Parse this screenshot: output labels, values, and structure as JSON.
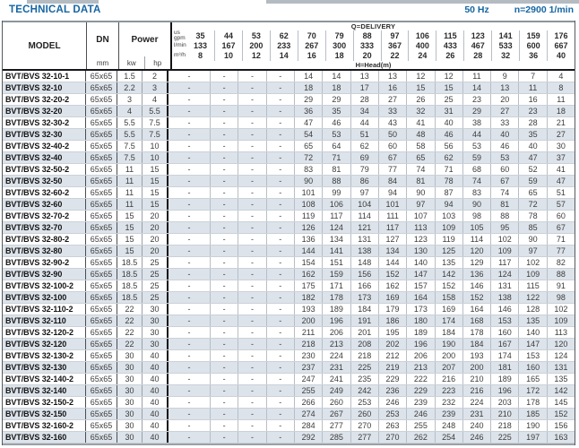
{
  "page": {
    "title": "TECHNICAL DATA",
    "frequency": "50 Hz",
    "speed": "n=2900 1/min",
    "colors": {
      "accent_blue": "#1565a3",
      "row_stripe": "#dce3ea",
      "border_dark": "#17171b"
    }
  },
  "table": {
    "header": {
      "model_label": "MODEL",
      "dn_label": "DN",
      "dn_unit": "mm",
      "power_label": "Power",
      "kw_label": "kw",
      "hp_label": "hp",
      "delivery_label": "Q=DELIVERY",
      "head_label": "H=Head(m)",
      "units": {
        "gpm_top": "us",
        "gpm_bottom": "gpm",
        "lmin": "l/min",
        "m3h": "m³/h"
      },
      "gpm": [
        "35",
        "44",
        "53",
        "62",
        "70",
        "79",
        "88",
        "97",
        "106",
        "115",
        "123",
        "141",
        "159",
        "176"
      ],
      "lmin": [
        "133",
        "167",
        "200",
        "233",
        "267",
        "300",
        "333",
        "367",
        "400",
        "433",
        "467",
        "533",
        "600",
        "667"
      ],
      "m3h": [
        "8",
        "10",
        "12",
        "14",
        "16",
        "18",
        "20",
        "22",
        "24",
        "26",
        "28",
        "32",
        "36",
        "40"
      ]
    },
    "rows": [
      {
        "model": "BVT/BVS 32-10-1",
        "dn": "65x65",
        "kw": "1.5",
        "hp": "2",
        "head": [
          "-",
          "-",
          "-",
          "-",
          "14",
          "14",
          "13",
          "13",
          "12",
          "12",
          "11",
          "9",
          "7",
          "4"
        ]
      },
      {
        "model": "BVT/BVS 32-10",
        "dn": "65x65",
        "kw": "2.2",
        "hp": "3",
        "head": [
          "-",
          "-",
          "-",
          "-",
          "18",
          "18",
          "17",
          "16",
          "15",
          "15",
          "14",
          "13",
          "11",
          "8"
        ]
      },
      {
        "model": "BVT/BVS 32-20-2",
        "dn": "65x65",
        "kw": "3",
        "hp": "4",
        "head": [
          "-",
          "-",
          "-",
          "-",
          "29",
          "29",
          "28",
          "27",
          "26",
          "25",
          "23",
          "20",
          "16",
          "11"
        ]
      },
      {
        "model": "BVT/BVS 32-20",
        "dn": "65x65",
        "kw": "4",
        "hp": "5.5",
        "head": [
          "-",
          "-",
          "-",
          "-",
          "36",
          "35",
          "34",
          "33",
          "32",
          "31",
          "29",
          "27",
          "23",
          "18"
        ]
      },
      {
        "model": "BVT/BVS 32-30-2",
        "dn": "65x65",
        "kw": "5.5",
        "hp": "7.5",
        "head": [
          "-",
          "-",
          "-",
          "-",
          "47",
          "46",
          "44",
          "43",
          "41",
          "40",
          "38",
          "33",
          "28",
          "21"
        ]
      },
      {
        "model": "BVT/BVS 32-30",
        "dn": "65x65",
        "kw": "5.5",
        "hp": "7.5",
        "head": [
          "-",
          "-",
          "-",
          "-",
          "54",
          "53",
          "51",
          "50",
          "48",
          "46",
          "44",
          "40",
          "35",
          "27"
        ]
      },
      {
        "model": "BVT/BVS 32-40-2",
        "dn": "65x65",
        "kw": "7.5",
        "hp": "10",
        "head": [
          "-",
          "-",
          "-",
          "-",
          "65",
          "64",
          "62",
          "60",
          "58",
          "56",
          "53",
          "46",
          "40",
          "30"
        ]
      },
      {
        "model": "BVT/BVS 32-40",
        "dn": "65x65",
        "kw": "7.5",
        "hp": "10",
        "head": [
          "-",
          "-",
          "-",
          "-",
          "72",
          "71",
          "69",
          "67",
          "65",
          "62",
          "59",
          "53",
          "47",
          "37"
        ]
      },
      {
        "model": "BVT/BVS 32-50-2",
        "dn": "65x65",
        "kw": "11",
        "hp": "15",
        "head": [
          "-",
          "-",
          "-",
          "-",
          "83",
          "81",
          "79",
          "77",
          "74",
          "71",
          "68",
          "60",
          "52",
          "41"
        ]
      },
      {
        "model": "BVT/BVS 32-50",
        "dn": "65x65",
        "kw": "11",
        "hp": "15",
        "head": [
          "-",
          "-",
          "-",
          "-",
          "90",
          "88",
          "86",
          "84",
          "81",
          "78",
          "74",
          "67",
          "59",
          "47"
        ]
      },
      {
        "model": "BVT/BVS 32-60-2",
        "dn": "65x65",
        "kw": "11",
        "hp": "15",
        "head": [
          "-",
          "-",
          "-",
          "-",
          "101",
          "99",
          "97",
          "94",
          "90",
          "87",
          "83",
          "74",
          "65",
          "51"
        ]
      },
      {
        "model": "BVT/BVS 32-60",
        "dn": "65x65",
        "kw": "11",
        "hp": "15",
        "head": [
          "-",
          "-",
          "-",
          "-",
          "108",
          "106",
          "104",
          "101",
          "97",
          "94",
          "90",
          "81",
          "72",
          "57"
        ]
      },
      {
        "model": "BVT/BVS 32-70-2",
        "dn": "65x65",
        "kw": "15",
        "hp": "20",
        "head": [
          "-",
          "-",
          "-",
          "-",
          "119",
          "117",
          "114",
          "111",
          "107",
          "103",
          "98",
          "88",
          "78",
          "60"
        ]
      },
      {
        "model": "BVT/BVS 32-70",
        "dn": "65x65",
        "kw": "15",
        "hp": "20",
        "head": [
          "-",
          "-",
          "-",
          "-",
          "126",
          "124",
          "121",
          "117",
          "113",
          "109",
          "105",
          "95",
          "85",
          "67"
        ]
      },
      {
        "model": "BVT/BVS 32-80-2",
        "dn": "65x65",
        "kw": "15",
        "hp": "20",
        "head": [
          "-",
          "-",
          "-",
          "-",
          "136",
          "134",
          "131",
          "127",
          "123",
          "119",
          "114",
          "102",
          "90",
          "71"
        ]
      },
      {
        "model": "BVT/BVS 32-80",
        "dn": "65x65",
        "kw": "15",
        "hp": "20",
        "head": [
          "-",
          "-",
          "-",
          "-",
          "144",
          "141",
          "138",
          "134",
          "130",
          "125",
          "120",
          "109",
          "97",
          "77"
        ]
      },
      {
        "model": "BVT/BVS 32-90-2",
        "dn": "65x65",
        "kw": "18.5",
        "hp": "25",
        "head": [
          "-",
          "-",
          "-",
          "-",
          "154",
          "151",
          "148",
          "144",
          "140",
          "135",
          "129",
          "117",
          "102",
          "82"
        ]
      },
      {
        "model": "BVT/BVS 32-90",
        "dn": "65x65",
        "kw": "18.5",
        "hp": "25",
        "head": [
          "-",
          "-",
          "-",
          "-",
          "162",
          "159",
          "156",
          "152",
          "147",
          "142",
          "136",
          "124",
          "109",
          "88"
        ]
      },
      {
        "model": "BVT/BVS 32-100-2",
        "dn": "65x65",
        "kw": "18.5",
        "hp": "25",
        "head": [
          "-",
          "-",
          "-",
          "-",
          "175",
          "171",
          "166",
          "162",
          "157",
          "152",
          "146",
          "131",
          "115",
          "91"
        ]
      },
      {
        "model": "BVT/BVS 32-100",
        "dn": "65x65",
        "kw": "18.5",
        "hp": "25",
        "head": [
          "-",
          "-",
          "-",
          "-",
          "182",
          "178",
          "173",
          "169",
          "164",
          "158",
          "152",
          "138",
          "122",
          "98"
        ]
      },
      {
        "model": "BVT/BVS 32-110-2",
        "dn": "65x65",
        "kw": "22",
        "hp": "30",
        "head": [
          "-",
          "-",
          "-",
          "-",
          "193",
          "189",
          "184",
          "179",
          "173",
          "169",
          "164",
          "146",
          "128",
          "102"
        ]
      },
      {
        "model": "BVT/BVS 32-110",
        "dn": "65x65",
        "kw": "22",
        "hp": "30",
        "head": [
          "-",
          "-",
          "-",
          "-",
          "200",
          "196",
          "191",
          "186",
          "180",
          "174",
          "168",
          "153",
          "135",
          "109"
        ]
      },
      {
        "model": "BVT/BVS 32-120-2",
        "dn": "65x65",
        "kw": "22",
        "hp": "30",
        "head": [
          "-",
          "-",
          "-",
          "-",
          "211",
          "206",
          "201",
          "195",
          "189",
          "184",
          "178",
          "160",
          "140",
          "113"
        ]
      },
      {
        "model": "BVT/BVS 32-120",
        "dn": "65x65",
        "kw": "22",
        "hp": "30",
        "head": [
          "-",
          "-",
          "-",
          "-",
          "218",
          "213",
          "208",
          "202",
          "196",
          "190",
          "184",
          "167",
          "147",
          "120"
        ]
      },
      {
        "model": "BVT/BVS 32-130-2",
        "dn": "65x65",
        "kw": "30",
        "hp": "40",
        "head": [
          "-",
          "-",
          "-",
          "-",
          "230",
          "224",
          "218",
          "212",
          "206",
          "200",
          "193",
          "174",
          "153",
          "124"
        ]
      },
      {
        "model": "BVT/BVS 32-130",
        "dn": "65x65",
        "kw": "30",
        "hp": "40",
        "head": [
          "-",
          "-",
          "-",
          "-",
          "237",
          "231",
          "225",
          "219",
          "213",
          "207",
          "200",
          "181",
          "160",
          "131"
        ]
      },
      {
        "model": "BVT/BVS 32-140-2",
        "dn": "65x65",
        "kw": "30",
        "hp": "40",
        "head": [
          "-",
          "-",
          "-",
          "-",
          "247",
          "241",
          "235",
          "229",
          "222",
          "216",
          "210",
          "189",
          "165",
          "135"
        ]
      },
      {
        "model": "BVT/BVS 32-140",
        "dn": "65x65",
        "kw": "30",
        "hp": "40",
        "head": [
          "-",
          "-",
          "-",
          "-",
          "255",
          "249",
          "242",
          "236",
          "229",
          "223",
          "216",
          "196",
          "172",
          "142"
        ]
      },
      {
        "model": "BVT/BVS 32-150-2",
        "dn": "65x65",
        "kw": "30",
        "hp": "40",
        "head": [
          "-",
          "-",
          "-",
          "-",
          "266",
          "260",
          "253",
          "246",
          "239",
          "232",
          "224",
          "203",
          "178",
          "145"
        ]
      },
      {
        "model": "BVT/BVS 32-150",
        "dn": "65x65",
        "kw": "30",
        "hp": "40",
        "head": [
          "-",
          "-",
          "-",
          "-",
          "274",
          "267",
          "260",
          "253",
          "246",
          "239",
          "231",
          "210",
          "185",
          "152"
        ]
      },
      {
        "model": "BVT/BVS 32-160-2",
        "dn": "65x65",
        "kw": "30",
        "hp": "40",
        "head": [
          "-",
          "-",
          "-",
          "-",
          "284",
          "277",
          "270",
          "263",
          "255",
          "248",
          "240",
          "218",
          "190",
          "156"
        ]
      },
      {
        "model": "BVT/BVS 32-160",
        "dn": "65x65",
        "kw": "30",
        "hp": "40",
        "head": [
          "-",
          "-",
          "-",
          "-",
          "292",
          "285",
          "277",
          "270",
          "262",
          "254",
          "246",
          "225",
          "197",
          "163"
        ]
      }
    ]
  }
}
